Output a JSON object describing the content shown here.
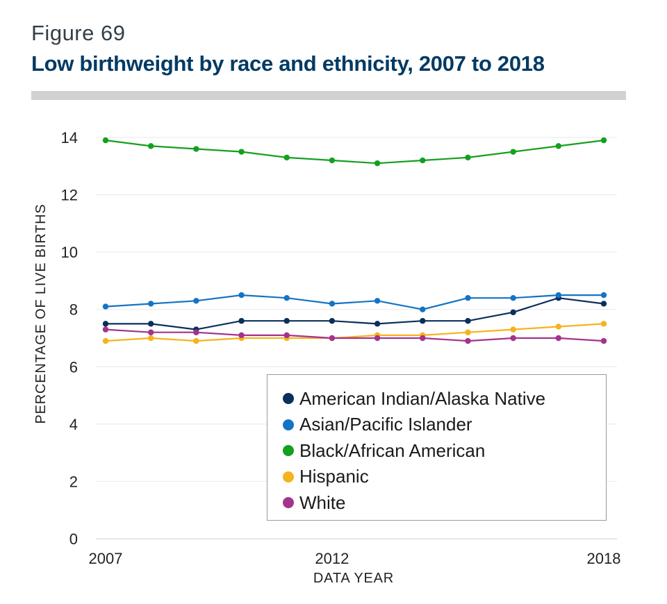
{
  "figure": {
    "label": "Figure 69",
    "title": "Low birthweight by race and ethnicity, 2007 to 2018"
  },
  "chart_data": {
    "type": "line",
    "x": [
      2007,
      2008,
      2009,
      2010,
      2011,
      2012,
      2013,
      2014,
      2015,
      2016,
      2017,
      2018
    ],
    "xticks": [
      2007,
      2012,
      2018
    ],
    "xlabel": "DATA YEAR",
    "ylabel": "PERCENTAGE OF LIVE BIRTHS",
    "ylim": [
      0,
      14
    ],
    "yticks": [
      0,
      2,
      4,
      6,
      8,
      10,
      12,
      14
    ],
    "grid": "horizontal",
    "legend_position": "bottom-right",
    "series": [
      {
        "name": "American Indian/Alaska Native",
        "color": "#0b2f5c",
        "values": [
          7.5,
          7.5,
          7.3,
          7.6,
          7.6,
          7.6,
          7.5,
          7.6,
          7.6,
          7.9,
          8.4,
          8.2
        ]
      },
      {
        "name": "Asian/Pacific Islander",
        "color": "#1473c6",
        "values": [
          8.1,
          8.2,
          8.3,
          8.5,
          8.4,
          8.2,
          8.3,
          8.0,
          8.4,
          8.4,
          8.5,
          8.5
        ]
      },
      {
        "name": "Black/African American",
        "color": "#14a01e",
        "values": [
          13.9,
          13.7,
          13.6,
          13.5,
          13.3,
          13.2,
          13.1,
          13.2,
          13.3,
          13.5,
          13.7,
          13.9
        ]
      },
      {
        "name": "Hispanic",
        "color": "#f5b31c",
        "values": [
          6.9,
          7.0,
          6.9,
          7.0,
          7.0,
          7.0,
          7.1,
          7.1,
          7.2,
          7.3,
          7.4,
          7.5
        ]
      },
      {
        "name": "White",
        "color": "#a3338f",
        "values": [
          7.3,
          7.2,
          7.2,
          7.1,
          7.1,
          7.0,
          7.0,
          7.0,
          6.9,
          7.0,
          7.0,
          6.9
        ]
      }
    ]
  }
}
